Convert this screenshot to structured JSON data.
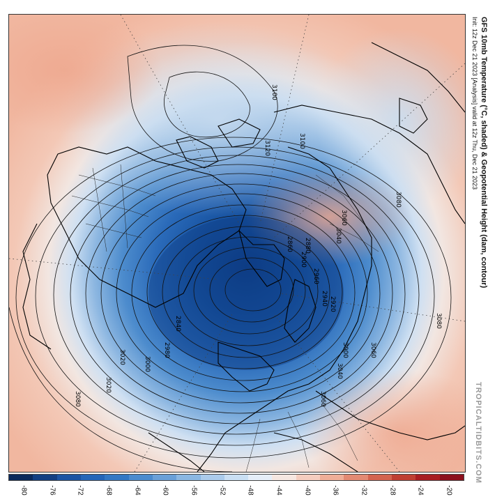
{
  "title": {
    "line1": "GFS 10mb Temperature (°C, shaded) & Geopotential Height (dam, contour)",
    "line2": "Init: 12z Dec 21 2023   [Analysis]   valid at 12z Thu, Dec 21 2023"
  },
  "watermark": "TROPICALTIDBITS.COM",
  "colorbar": {
    "ticks": [
      "-80",
      "-76",
      "-72",
      "-68",
      "-64",
      "-60",
      "-56",
      "-52",
      "-48",
      "-44",
      "-40",
      "-36",
      "-32",
      "-28",
      "-24",
      "-20"
    ],
    "colors": [
      "#0b2a5c",
      "#133f82",
      "#1c54a3",
      "#2466b8",
      "#3378c4",
      "#4b8bce",
      "#6aa0d8",
      "#8bb7e2",
      "#abcbeb",
      "#cadff3",
      "#e6eef8",
      "#f6e7e1",
      "#f4cdbf",
      "#efae98",
      "#e38a73",
      "#d3644f",
      "#bf3f32",
      "#a81e22",
      "#8c0f1c"
    ]
  },
  "contours": {
    "labels": [
      "3100",
      "3120",
      "3100",
      "3080",
      "3060",
      "3040",
      "3020",
      "3000",
      "2980",
      "2960",
      "2940",
      "2920",
      "2900",
      "2880",
      "2860",
      "2840",
      "3080",
      "3060",
      "3040",
      "3020",
      "3000",
      "3060",
      "3080"
    ]
  }
}
